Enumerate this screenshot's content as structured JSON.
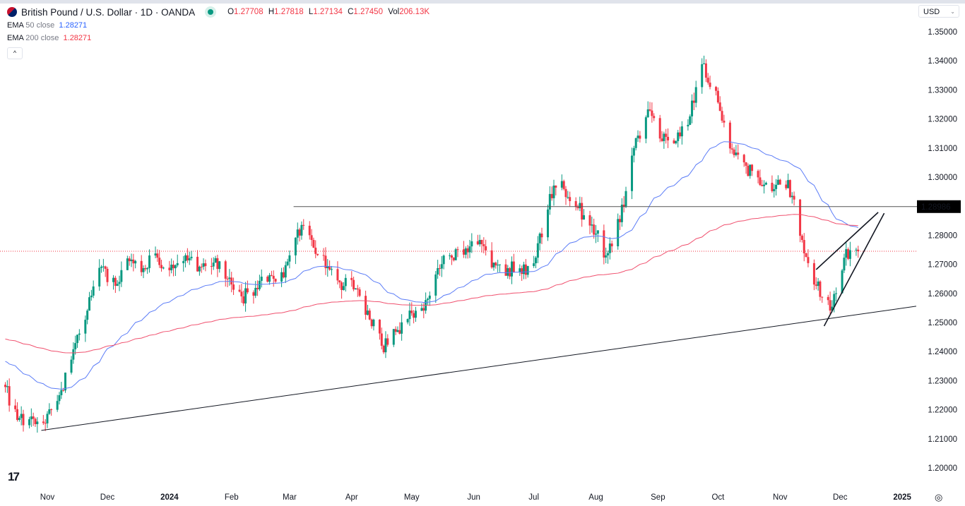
{
  "header": {
    "symbol_title": "British Pound / U.S. Dollar · 1D · OANDA",
    "market_status": "open",
    "ohlc": {
      "o_label": "O",
      "o": "1.27708",
      "h_label": "H",
      "h": "1.27818",
      "l_label": "L",
      "l": "1.27134",
      "c_label": "C",
      "c": "1.27450",
      "vol_label": "Vol",
      "vol": "206.13K"
    },
    "indicators": [
      {
        "name": "EMA",
        "params": "50 close",
        "value": "1.28271",
        "color": "#2962ff"
      },
      {
        "name": "EMA",
        "params": "200 close",
        "value": "1.28271",
        "color": "#f23645"
      }
    ],
    "collapse_label": "^",
    "currency": "USD"
  },
  "colors": {
    "up": "#089981",
    "down": "#f23645",
    "ema50": "#5b7cf7",
    "ema200": "#f0506e",
    "line": "#131722"
  },
  "chart_data": {
    "type": "candlestick",
    "interval": "1D",
    "note_series": "weekly closing anchors; daily candles shown between them",
    "weekly_closes": {
      "start": "2023-10-10",
      "step_days": 7,
      "values": [
        1.2286,
        1.2165,
        1.2177,
        1.2153,
        1.225,
        1.2408,
        1.2541,
        1.2692,
        1.2626,
        1.2711,
        1.2687,
        1.2723,
        1.2699,
        1.2731,
        1.2692,
        1.2706,
        1.265,
        1.259,
        1.2619,
        1.2663,
        1.2655,
        1.282,
        1.2784,
        1.2687,
        1.2638,
        1.2614,
        1.2541,
        1.242,
        1.2468,
        1.2541,
        1.2541,
        1.2687,
        1.2723,
        1.2755,
        1.2784,
        1.2706,
        1.2687,
        1.2667,
        1.2723,
        1.2942,
        1.2959,
        1.2893,
        1.2837,
        1.2731,
        1.2845,
        1.31,
        1.3233,
        1.3124,
        1.3124,
        1.3209,
        1.3391,
        1.3257,
        1.3095,
        1.3039,
        1.2973,
        1.2959,
        1.299,
        1.2784,
        1.2626,
        1.2541,
        1.2723,
        1.2745
      ]
    },
    "last_price": 1.2745,
    "ylim": [
      1.195,
      1.355
    ],
    "y_ticks": [
      "1.35000",
      "1.34000",
      "1.33000",
      "1.32000",
      "1.31000",
      "1.30000",
      "1.28000",
      "1.27000",
      "1.26000",
      "1.25000",
      "1.24000",
      "1.23000",
      "1.22000",
      "1.21000",
      "1.20000"
    ],
    "x_ticks": [
      {
        "label": "Nov",
        "date": "2023-11-01",
        "bold": false
      },
      {
        "label": "Dec",
        "date": "2023-12-01",
        "bold": false
      },
      {
        "label": "2024",
        "date": "2024-01-01",
        "bold": true
      },
      {
        "label": "Feb",
        "date": "2024-02-01",
        "bold": false
      },
      {
        "label": "Mar",
        "date": "2024-03-01",
        "bold": false
      },
      {
        "label": "Apr",
        "date": "2024-04-01",
        "bold": false
      },
      {
        "label": "May",
        "date": "2024-05-01",
        "bold": false
      },
      {
        "label": "Jun",
        "date": "2024-06-01",
        "bold": false
      },
      {
        "label": "Jul",
        "date": "2024-07-01",
        "bold": false
      },
      {
        "label": "Aug",
        "date": "2024-08-01",
        "bold": false
      },
      {
        "label": "Sep",
        "date": "2024-09-01",
        "bold": false
      },
      {
        "label": "Oct",
        "date": "2024-10-01",
        "bold": false
      },
      {
        "label": "Nov",
        "date": "2024-11-01",
        "bold": false
      },
      {
        "label": "Dec",
        "date": "2024-12-01",
        "bold": false
      },
      {
        "label": "2025",
        "date": "2025-01-01",
        "bold": true
      }
    ],
    "horizontal_level": {
      "price": 1.28986,
      "label": "1.28986",
      "from": "2024-03-03"
    },
    "trendlines": [
      {
        "name": "support",
        "from": {
          "date": "2023-10-29",
          "price": 1.2129
        },
        "to": {
          "date": "2025-01-08",
          "price": 1.2556
        }
      },
      {
        "name": "wedge-upper",
        "from": {
          "date": "2024-11-19",
          "price": 1.2682
        },
        "to": {
          "date": "2024-12-20",
          "price": 1.2879
        }
      },
      {
        "name": "wedge-lower",
        "from": {
          "date": "2024-11-23",
          "price": 1.2488
        },
        "to": {
          "date": "2024-12-23",
          "price": 1.2876
        }
      }
    ],
    "grid": false,
    "legend": "top-left"
  }
}
